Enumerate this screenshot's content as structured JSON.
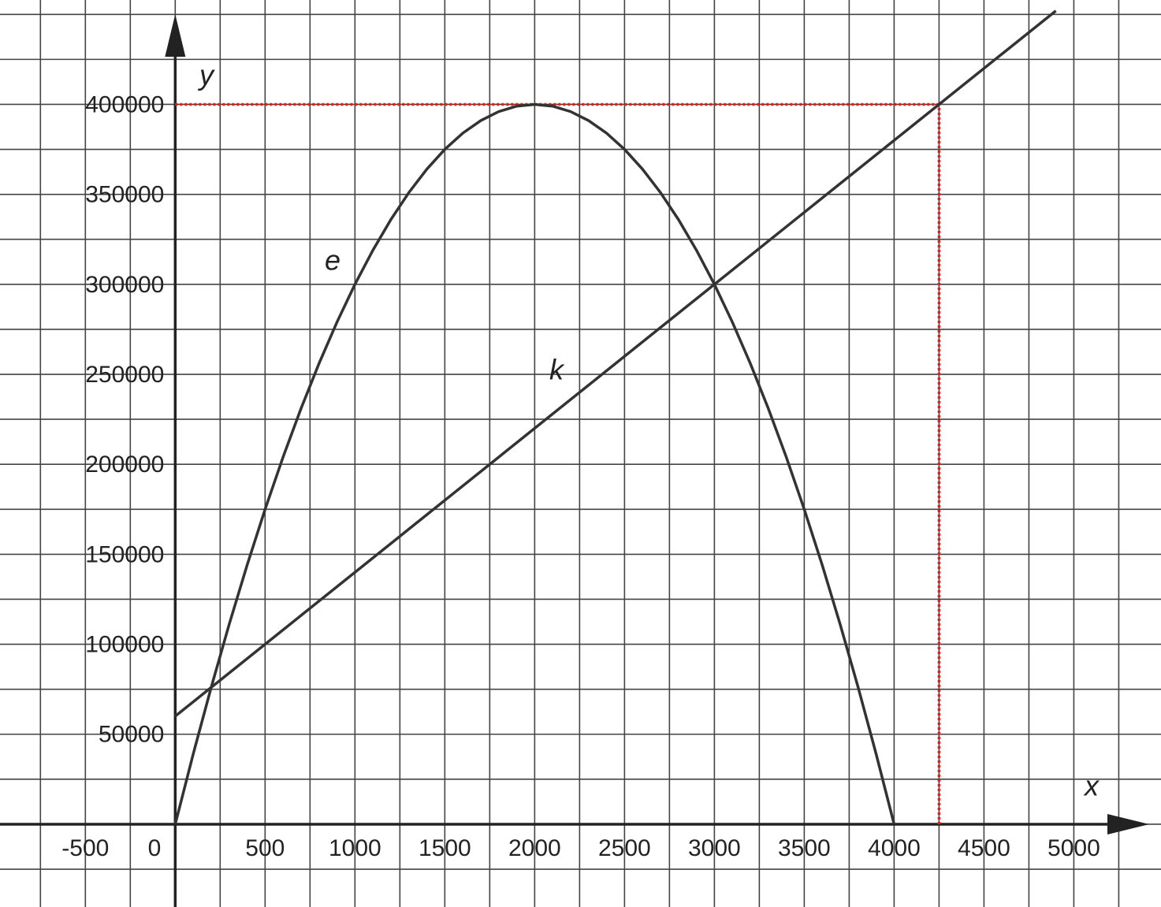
{
  "chart_data": {
    "type": "line",
    "x_label": "x",
    "y_label": "y",
    "xlim": [
      -975,
      5485
    ],
    "ylim": [
      -46000,
      458000
    ],
    "xticks": [
      -500,
      0,
      500,
      1000,
      1500,
      2000,
      2500,
      3000,
      3500,
      4000,
      4500,
      5000
    ],
    "yticks": [
      50000,
      100000,
      150000,
      200000,
      250000,
      300000,
      350000,
      400000
    ],
    "xgrid": [
      -750,
      -500,
      -250,
      0,
      250,
      500,
      750,
      1000,
      1250,
      1500,
      1750,
      2000,
      2250,
      2500,
      2750,
      3000,
      3250,
      3500,
      3750,
      4000,
      4250,
      4500,
      4750,
      5000,
      5250
    ],
    "ygrid": [
      -25000,
      0,
      25000,
      50000,
      75000,
      100000,
      125000,
      150000,
      175000,
      200000,
      225000,
      250000,
      275000,
      300000,
      325000,
      350000,
      375000,
      400000,
      425000,
      450000
    ],
    "grid": true,
    "series": [
      {
        "name": "e",
        "color": "#333333",
        "x": [
          0,
          100,
          200,
          300,
          400,
          500,
          600,
          700,
          800,
          900,
          1000,
          1100,
          1200,
          1300,
          1400,
          1500,
          1600,
          1700,
          1800,
          1900,
          2000,
          2100,
          2200,
          2300,
          2400,
          2500,
          2600,
          2700,
          2800,
          2900,
          3000,
          3100,
          3200,
          3300,
          3400,
          3500,
          3600,
          3700,
          3800,
          3900,
          4000
        ],
        "values": [
          0,
          39000,
          76000,
          111000,
          144000,
          175000,
          204000,
          231000,
          256000,
          279000,
          300000,
          319000,
          336000,
          351000,
          364000,
          375000,
          384000,
          391000,
          396000,
          399000,
          400000,
          399000,
          396000,
          391000,
          384000,
          375000,
          364000,
          351000,
          336000,
          319000,
          300000,
          279000,
          256000,
          231000,
          204000,
          175000,
          144000,
          111000,
          76000,
          39000,
          0
        ]
      },
      {
        "name": "k",
        "color": "#333333",
        "x": [
          0,
          1000,
          2000,
          3000,
          4000,
          4900
        ],
        "values": [
          60000,
          140000,
          220000,
          300000,
          380000,
          452000
        ]
      }
    ],
    "marker": {
      "x": 4250,
      "y": 400000,
      "color": "#e0201b"
    }
  }
}
